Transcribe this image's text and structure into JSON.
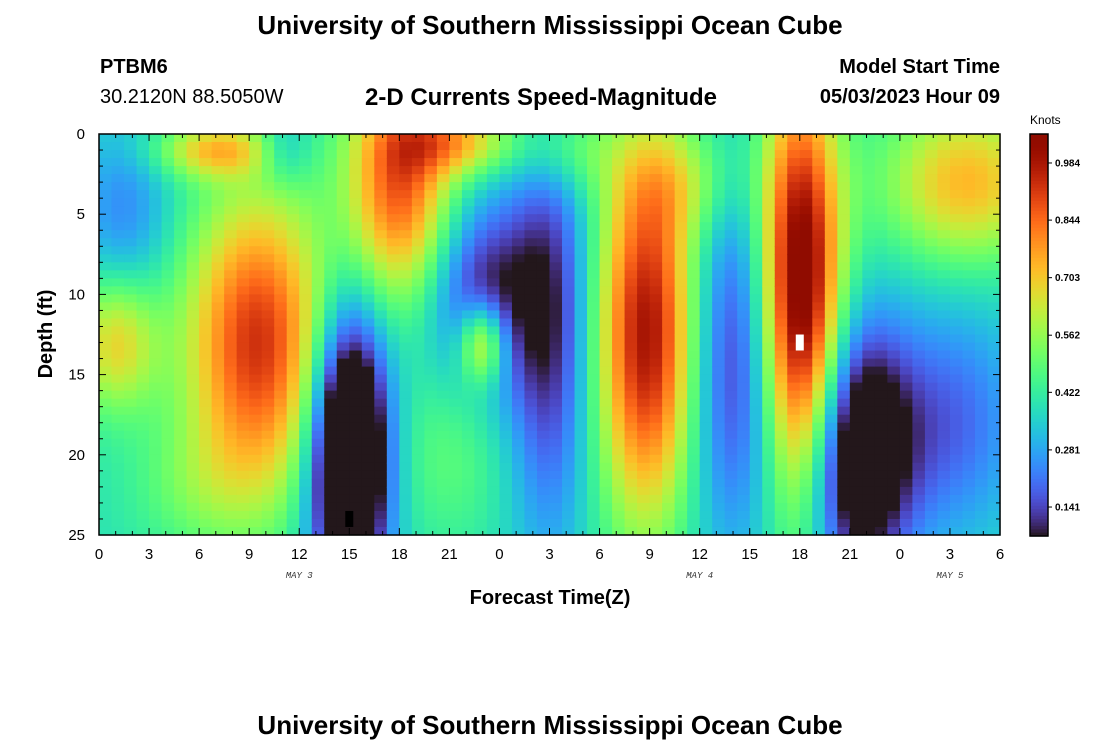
{
  "header": {
    "title": "University of Southern Mississippi Ocean Cube",
    "station_id": "PTBM6",
    "coords": "30.2120N  88.5050W",
    "subtitle": "2-D Currents Speed-Magnitude",
    "model_start_label": "Model Start Time",
    "model_start_value": "05/03/2023 Hour 09"
  },
  "footer": {
    "title": "University of Southern Mississippi Ocean Cube"
  },
  "chart_data": {
    "type": "heatmap",
    "xlabel": "Forecast Time(Z)",
    "ylabel": "Depth (ft)",
    "x_range_hours": [
      0,
      54
    ],
    "x_ticks": [
      {
        "hour": 0,
        "label": "0"
      },
      {
        "hour": 3,
        "label": "3"
      },
      {
        "hour": 6,
        "label": "6"
      },
      {
        "hour": 9,
        "label": "9"
      },
      {
        "hour": 12,
        "label": "12"
      },
      {
        "hour": 15,
        "label": "15"
      },
      {
        "hour": 18,
        "label": "18"
      },
      {
        "hour": 21,
        "label": "21"
      },
      {
        "hour": 24,
        "label": "0"
      },
      {
        "hour": 27,
        "label": "3"
      },
      {
        "hour": 30,
        "label": "6"
      },
      {
        "hour": 33,
        "label": "9"
      },
      {
        "hour": 36,
        "label": "12"
      },
      {
        "hour": 39,
        "label": "15"
      },
      {
        "hour": 42,
        "label": "18"
      },
      {
        "hour": 45,
        "label": "21"
      },
      {
        "hour": 48,
        "label": "0"
      },
      {
        "hour": 51,
        "label": "3"
      },
      {
        "hour": 54,
        "label": "6"
      }
    ],
    "date_labels": [
      {
        "hour": 12,
        "label": "MAY 3"
      },
      {
        "hour": 36,
        "label": "MAY 4"
      },
      {
        "hour": 51,
        "label": "MAY 5"
      }
    ],
    "y_range": [
      0,
      25
    ],
    "y_ticks": [
      0,
      5,
      10,
      15,
      20,
      25
    ],
    "y_inverted": true,
    "colorbar": {
      "unit": "Knots",
      "min": 0.07,
      "max": 1.055,
      "labels": [
        "0.984",
        "0.844",
        "0.703",
        "0.562",
        "0.422",
        "0.281",
        "0.141"
      ],
      "colormap": "turbo"
    },
    "markers": [
      {
        "hour": 15,
        "depth": 24,
        "color": "#000000"
      },
      {
        "hour": 42,
        "depth": 13,
        "color": "#ffffff"
      }
    ],
    "features": [
      {
        "t": 1.0,
        "d": 13.0,
        "st": 1.8,
        "sd": 3.0,
        "a": 0.3
      },
      {
        "t": 9.5,
        "d": 13.0,
        "st": 3.0,
        "sd": 6.5,
        "a": 0.55
      },
      {
        "t": 7.0,
        "d": 1.0,
        "st": 2.5,
        "sd": 1.2,
        "a": 0.3
      },
      {
        "t": 1.5,
        "d": 5.0,
        "st": 2.0,
        "sd": 4.0,
        "a": -0.15
      },
      {
        "t": 6.0,
        "d": 22.0,
        "st": 3.0,
        "sd": 3.0,
        "a": 0.1
      },
      {
        "t": 11.0,
        "d": 1.0,
        "st": 1.2,
        "sd": 1.5,
        "a": -0.15
      },
      {
        "t": 15.0,
        "d": 20.0,
        "st": 1.6,
        "sd": 6.0,
        "a": -0.75
      },
      {
        "t": 18.0,
        "d": 3.0,
        "st": 2.2,
        "sd": 5.0,
        "a": 0.5
      },
      {
        "t": 21.5,
        "d": 0.5,
        "st": 2.5,
        "sd": 1.5,
        "a": 0.3
      },
      {
        "t": 23.0,
        "d": 10.0,
        "st": 2.2,
        "sd": 4.0,
        "a": -0.3
      },
      {
        "t": 23.0,
        "d": 13.0,
        "st": 1.0,
        "sd": 1.8,
        "a": 0.4
      },
      {
        "t": 21.0,
        "d": 20.0,
        "st": 2.5,
        "sd": 4.0,
        "a": 0.1
      },
      {
        "t": 27.0,
        "d": 12.0,
        "st": 1.8,
        "sd": 9.0,
        "a": -0.3
      },
      {
        "t": 28.0,
        "d": 1.0,
        "st": 2.0,
        "sd": 2.0,
        "a": 0.15
      },
      {
        "t": 33.0,
        "d": 12.5,
        "st": 2.2,
        "sd": 8.0,
        "a": 0.65
      },
      {
        "t": 35.0,
        "d": 3.0,
        "st": 2.5,
        "sd": 2.5,
        "a": 0.15
      },
      {
        "t": 38.0,
        "d": 14.0,
        "st": 2.5,
        "sd": 8.0,
        "a": -0.3
      },
      {
        "t": 42.0,
        "d": 10.0,
        "st": 1.7,
        "sd": 9.0,
        "a": 0.8
      },
      {
        "t": 45.5,
        "d": 20.0,
        "st": 2.2,
        "sd": 5.5,
        "a": -0.5
      },
      {
        "t": 52.0,
        "d": 3.0,
        "st": 3.5,
        "sd": 3.5,
        "a": 0.35
      },
      {
        "t": 51.0,
        "d": 18.0,
        "st": 3.0,
        "sd": 5.0,
        "a": -0.2
      }
    ],
    "base_level": 0.32
  }
}
